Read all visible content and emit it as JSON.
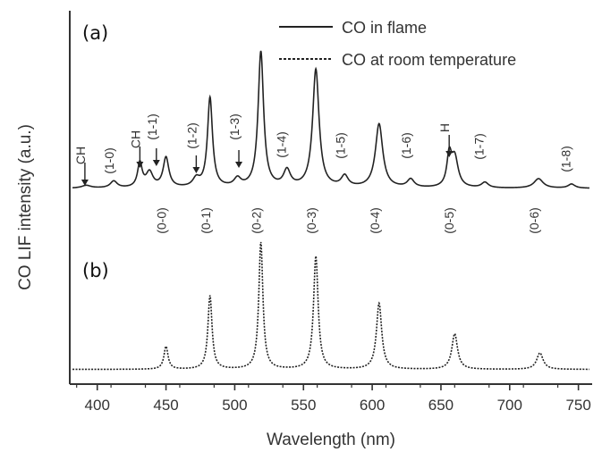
{
  "chart_data": {
    "type": "line",
    "title": "",
    "xlabel": "Wavelength (nm)",
    "ylabel": "CO LIF intensity (a.u.)",
    "xlim": [
      380,
      760
    ],
    "x_ticks": [
      400,
      450,
      500,
      550,
      600,
      650,
      700,
      750
    ],
    "grid": false,
    "legend_position": "top-right",
    "panels": [
      {
        "label": "(a)",
        "series_name": "CO in flame",
        "line_style": "solid",
        "baseline": 0.02,
        "peaks": [
          {
            "x": 392,
            "h": 0.02,
            "w": 4
          },
          {
            "x": 412,
            "h": 0.05,
            "w": 3
          },
          {
            "x": 431,
            "h": 0.18,
            "w": 2
          },
          {
            "x": 438,
            "h": 0.11,
            "w": 3
          },
          {
            "x": 450,
            "h": 0.22,
            "w": 2.5
          },
          {
            "x": 472,
            "h": 0.06,
            "w": 3
          },
          {
            "x": 482,
            "h": 0.66,
            "w": 2.2
          },
          {
            "x": 502,
            "h": 0.06,
            "w": 3
          },
          {
            "x": 519,
            "h": 1.0,
            "w": 2.4
          },
          {
            "x": 538,
            "h": 0.12,
            "w": 3
          },
          {
            "x": 559,
            "h": 0.87,
            "w": 2.8
          },
          {
            "x": 580,
            "h": 0.08,
            "w": 3
          },
          {
            "x": 605,
            "h": 0.47,
            "w": 3.2
          },
          {
            "x": 628,
            "h": 0.06,
            "w": 3
          },
          {
            "x": 656,
            "h": 0.22,
            "w": 2
          },
          {
            "x": 660,
            "h": 0.22,
            "w": 3
          },
          {
            "x": 682,
            "h": 0.04,
            "w": 3
          },
          {
            "x": 721,
            "h": 0.07,
            "w": 4
          },
          {
            "x": 745,
            "h": 0.03,
            "w": 3
          }
        ]
      },
      {
        "label": "(b)",
        "series_name": "CO at room temperature",
        "line_style": "dashed",
        "baseline": 0.01,
        "peaks": [
          {
            "x": 450,
            "h": 0.18,
            "w": 1.8
          },
          {
            "x": 482,
            "h": 0.58,
            "w": 1.8
          },
          {
            "x": 519,
            "h": 1.0,
            "w": 1.8
          },
          {
            "x": 559,
            "h": 0.89,
            "w": 2.0
          },
          {
            "x": 605,
            "h": 0.52,
            "w": 2.3
          },
          {
            "x": 660,
            "h": 0.28,
            "w": 2.5
          },
          {
            "x": 722,
            "h": 0.13,
            "w": 2.8
          }
        ]
      }
    ],
    "band_labels_a": [
      {
        "text": "(1-0)",
        "x": 412
      },
      {
        "text": "(1-1)",
        "x": 443
      },
      {
        "text": "(1-2)",
        "x": 472
      },
      {
        "text": "(1-3)",
        "x": 503
      },
      {
        "text": "(1-4)",
        "x": 537
      },
      {
        "text": "(1-5)",
        "x": 580
      },
      {
        "text": "(1-6)",
        "x": 628
      },
      {
        "text": "(1-7)",
        "x": 681
      },
      {
        "text": "(1-8)",
        "x": 744
      }
    ],
    "band_labels_between": [
      {
        "text": "(0-0)",
        "x": 450
      },
      {
        "text": "(0-1)",
        "x": 482
      },
      {
        "text": "(0-2)",
        "x": 519
      },
      {
        "text": "(0-3)",
        "x": 559
      },
      {
        "text": "(0-4)",
        "x": 605
      },
      {
        "text": "(0-5)",
        "x": 659
      },
      {
        "text": "(0-6)",
        "x": 721
      }
    ],
    "arrow_labels": [
      {
        "text": "CH",
        "x": 391
      },
      {
        "text": "CH",
        "x": 431
      },
      {
        "text": "H",
        "x": 656
      }
    ],
    "arrow_only": [
      {
        "x": 443
      },
      {
        "x": 472
      },
      {
        "x": 503
      }
    ]
  }
}
